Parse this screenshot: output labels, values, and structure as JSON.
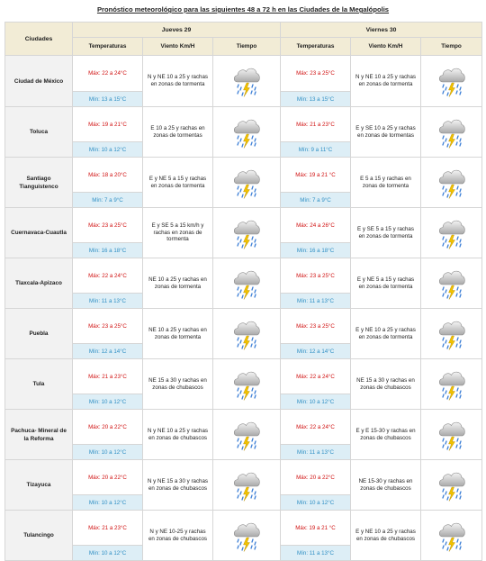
{
  "title": "Pronóstico meteorológico para las siguientes 48 a 72 h en las Ciudades de la Megalópolis",
  "header": {
    "cities_label": "Ciudades",
    "days": [
      "Jueves 29",
      "Viernes 30"
    ],
    "columns": [
      "Temperaturas",
      "Viento Km/H",
      "Tiempo"
    ]
  },
  "icons": {
    "weather": "storm-cloud-rain-lightning-icon"
  },
  "colors": {
    "max_temp": "#d01010",
    "min_temp": "#2f8fc4",
    "header_bg": "#f2ecd6"
  },
  "rows": [
    {
      "city": "Ciudad de México",
      "days": [
        {
          "max": "Máx: 22 a 24°C",
          "min": "Mín: 13 a 15°C",
          "wind": "N y NE 10 a 25 y rachas en zonas de tormenta"
        },
        {
          "max": "Máx: 23 a 25°C",
          "min": "Mín: 13 a 15°C",
          "wind": "N y NE 10 a 25 y rachas en zonas de tormenta"
        }
      ]
    },
    {
      "city": "Toluca",
      "days": [
        {
          "max": "Máx: 19 a 21°C",
          "min": "Mín: 10 a 12°C",
          "wind": "E 10 a 25 y rachas en zonas de tormentas"
        },
        {
          "max": "Máx: 21 a 23°C",
          "min": "Mín: 9 a 11°C",
          "wind": "E y SE 10 a 25 y rachas en zonas de tormentas"
        }
      ]
    },
    {
      "city": "Santiago Tianguistenco",
      "days": [
        {
          "max": "Máx: 18 a 20°C",
          "min": "Mín: 7 a 9°C",
          "wind": "E y NE 5 a 15 y rachas en zonas de tormenta"
        },
        {
          "max": "Máx: 19 a 21 °C",
          "min": "Mín: 7 a 9°C",
          "wind": "E 5 a 15 y rachas en zonas de tormenta"
        }
      ]
    },
    {
      "city": "Cuernavaca-Cuautla",
      "days": [
        {
          "max": "Máx: 23 a 25°C",
          "min": "Mín: 16 a 18°C",
          "wind": "E y SE 5 a 15 km/h y rachas en zonas de tormenta"
        },
        {
          "max": "Máx: 24 a 26°C",
          "min": "Mín: 16 a 18°C",
          "wind": "E y SE 5 a 15 y rachas en zonas de tormenta"
        }
      ]
    },
    {
      "city": "Tlaxcala-Apizaco",
      "days": [
        {
          "max": "Máx: 22 a 24°C",
          "min": "Mín: 11 a 13°C",
          "wind": "NE 10 a 25 y rachas en zonas de tormenta"
        },
        {
          "max": "Máx: 23 a 25°C",
          "min": "Mín: 11 a 13°C",
          "wind": "E y NE 5 a 15 y rachas en zonas de tormenta"
        }
      ]
    },
    {
      "city": "Puebla",
      "days": [
        {
          "max": "Máx: 23 a 25°C",
          "min": "Mín: 12 a 14°C",
          "wind": "NE 10 a 25 y rachas en zonas de tormenta"
        },
        {
          "max": "Máx: 23 a 25°C",
          "min": "Mín: 12 a 14°C",
          "wind": "E y NE 10 a 25 y rachas en zonas de tormenta"
        }
      ]
    },
    {
      "city": "Tula",
      "days": [
        {
          "max": "Máx: 21 a 23°C",
          "min": "Mín: 10 a 12°C",
          "wind": "NE 15 a 30 y rachas en zonas de chubascos"
        },
        {
          "max": "Máx: 22 a 24°C",
          "min": "Mín: 10 a 12°C",
          "wind": "NE 15 a 30 y rachas en zonas de chubascos"
        }
      ]
    },
    {
      "city": "Pachuca- Mineral de la Reforma",
      "days": [
        {
          "max": "Máx: 20 a 22°C",
          "min": "Mín: 10 a 12°C",
          "wind": "N y NE 10 a 25 y rachas en zonas de chubascos"
        },
        {
          "max": "Máx: 22 a 24°C",
          "min": "Mín: 11 a 13°C",
          "wind": "E y E 15-30 y rachas en zonas de chubascos"
        }
      ]
    },
    {
      "city": "Tizayuca",
      "days": [
        {
          "max": "Máx: 20 a 22°C",
          "min": "Mín: 10 a 12°C",
          "wind": "N y NE 15 a 30 y rachas en zonas de chubascos"
        },
        {
          "max": "Máx: 20 a 22°C",
          "min": "Mín: 10 a 12°C",
          "wind": "NE 15-30 y rachas en zonas de chubascos"
        }
      ]
    },
    {
      "city": "Tulancingo",
      "days": [
        {
          "max": "Máx: 21 a 23°C",
          "min": "Mín: 10 a 12°C",
          "wind": "N y NE 10-25 y rachas en zonas de chubascos"
        },
        {
          "max": "Máx: 19 a 21 °C",
          "min": "Mín: 11 a 13°C",
          "wind": "E y NE 10 a 25 y rachas en zonas de chubascos"
        }
      ]
    }
  ]
}
